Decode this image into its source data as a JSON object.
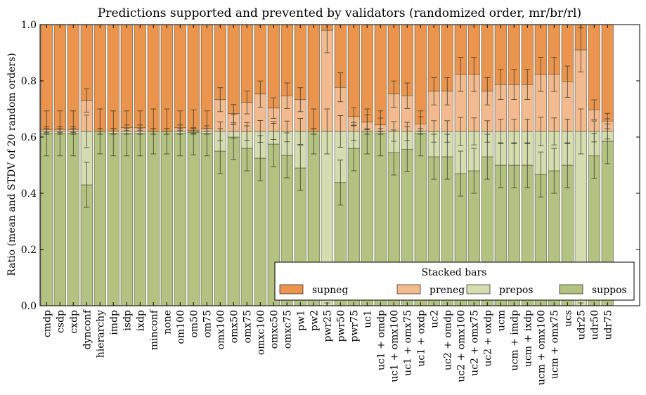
{
  "chart_data": {
    "type": "bar",
    "stacked": true,
    "title": "Predictions supported and prevented by validators (randomized order, mr/br/rl)",
    "ylabel": "Ratio (mean and STDV of 20 random orders)",
    "xlabel": "",
    "ylim": [
      0,
      1.0
    ],
    "yticks": [
      "0.0",
      "0.2",
      "0.4",
      "0.6",
      "0.8",
      "1.0"
    ],
    "grid": false,
    "categories": [
      "cmdp",
      "csdp",
      "cxdp",
      "dynconf",
      "hierarchy",
      "imdp",
      "isdp",
      "ixdp",
      "minconf",
      "none",
      "om100",
      "om50",
      "om75",
      "omx100",
      "omx50",
      "omx75",
      "omxc100",
      "omxc50",
      "omxc75",
      "pw1",
      "pw2",
      "pwr25",
      "pwr50",
      "pwr75",
      "uc1",
      "uc1 + omdp",
      "uc1 + omx100",
      "uc1 + omx75",
      "uc1 + oxdp",
      "uc2",
      "uc2 + omdp",
      "uc2 + omx100",
      "uc2 + omx75",
      "uc2 + oxdp",
      "ucm",
      "ucm + imdp",
      "ucm + ixdp",
      "ucm + omx100",
      "ucm + omx75",
      "ucs",
      "udr25",
      "udr50",
      "udr75"
    ],
    "series": [
      {
        "name": "suppos",
        "color": "#b4c281",
        "values": [
          0.613,
          0.613,
          0.613,
          0.43,
          0.62,
          0.613,
          0.613,
          0.613,
          0.62,
          0.62,
          0.613,
          0.617,
          0.613,
          0.55,
          0.6,
          0.56,
          0.525,
          0.575,
          0.535,
          0.49,
          0.62,
          0.0,
          0.438,
          0.56,
          0.62,
          0.613,
          0.545,
          0.557,
          0.613,
          0.53,
          0.53,
          0.47,
          0.48,
          0.53,
          0.5,
          0.5,
          0.5,
          0.467,
          0.48,
          0.5,
          0.0,
          0.533,
          0.585
        ]
      },
      {
        "name": "prepos",
        "color": "#d4dcb0",
        "values": [
          0.007,
          0.007,
          0.007,
          0.19,
          0.0,
          0.007,
          0.007,
          0.007,
          0.0,
          0.0,
          0.007,
          0.003,
          0.007,
          0.07,
          0.02,
          0.06,
          0.095,
          0.045,
          0.085,
          0.13,
          0.0,
          0.62,
          0.182,
          0.06,
          0.0,
          0.007,
          0.075,
          0.063,
          0.007,
          0.09,
          0.09,
          0.15,
          0.14,
          0.09,
          0.12,
          0.12,
          0.12,
          0.153,
          0.14,
          0.12,
          0.62,
          0.087,
          0.035
        ]
      },
      {
        "name": "preneg",
        "color": "#f2ba8e",
        "values": [
          0.007,
          0.007,
          0.007,
          0.11,
          0.0,
          0.0,
          0.013,
          0.013,
          0.0,
          0.0,
          0.013,
          0.003,
          0.01,
          0.113,
          0.063,
          0.103,
          0.133,
          0.083,
          0.127,
          0.113,
          0.0,
          0.36,
          0.157,
          0.053,
          0.033,
          0.023,
          0.133,
          0.127,
          0.027,
          0.143,
          0.143,
          0.203,
          0.203,
          0.143,
          0.167,
          0.167,
          0.167,
          0.203,
          0.203,
          0.177,
          0.29,
          0.077,
          0.037
        ]
      },
      {
        "name": "supneg",
        "color": "#ea944d",
        "values": [
          0.373,
          0.373,
          0.373,
          0.27,
          0.38,
          0.38,
          0.367,
          0.367,
          0.38,
          0.38,
          0.367,
          0.377,
          0.37,
          0.267,
          0.317,
          0.277,
          0.247,
          0.297,
          0.253,
          0.267,
          0.38,
          0.02,
          0.223,
          0.327,
          0.347,
          0.357,
          0.247,
          0.253,
          0.353,
          0.237,
          0.237,
          0.177,
          0.177,
          0.237,
          0.213,
          0.213,
          0.213,
          0.177,
          0.177,
          0.203,
          0.09,
          0.303,
          0.343
        ]
      }
    ],
    "legend": {
      "title": "Stacked bars",
      "position": "lower-right",
      "entries": [
        "supneg",
        "preneg",
        "prepos",
        "suppos"
      ]
    }
  }
}
